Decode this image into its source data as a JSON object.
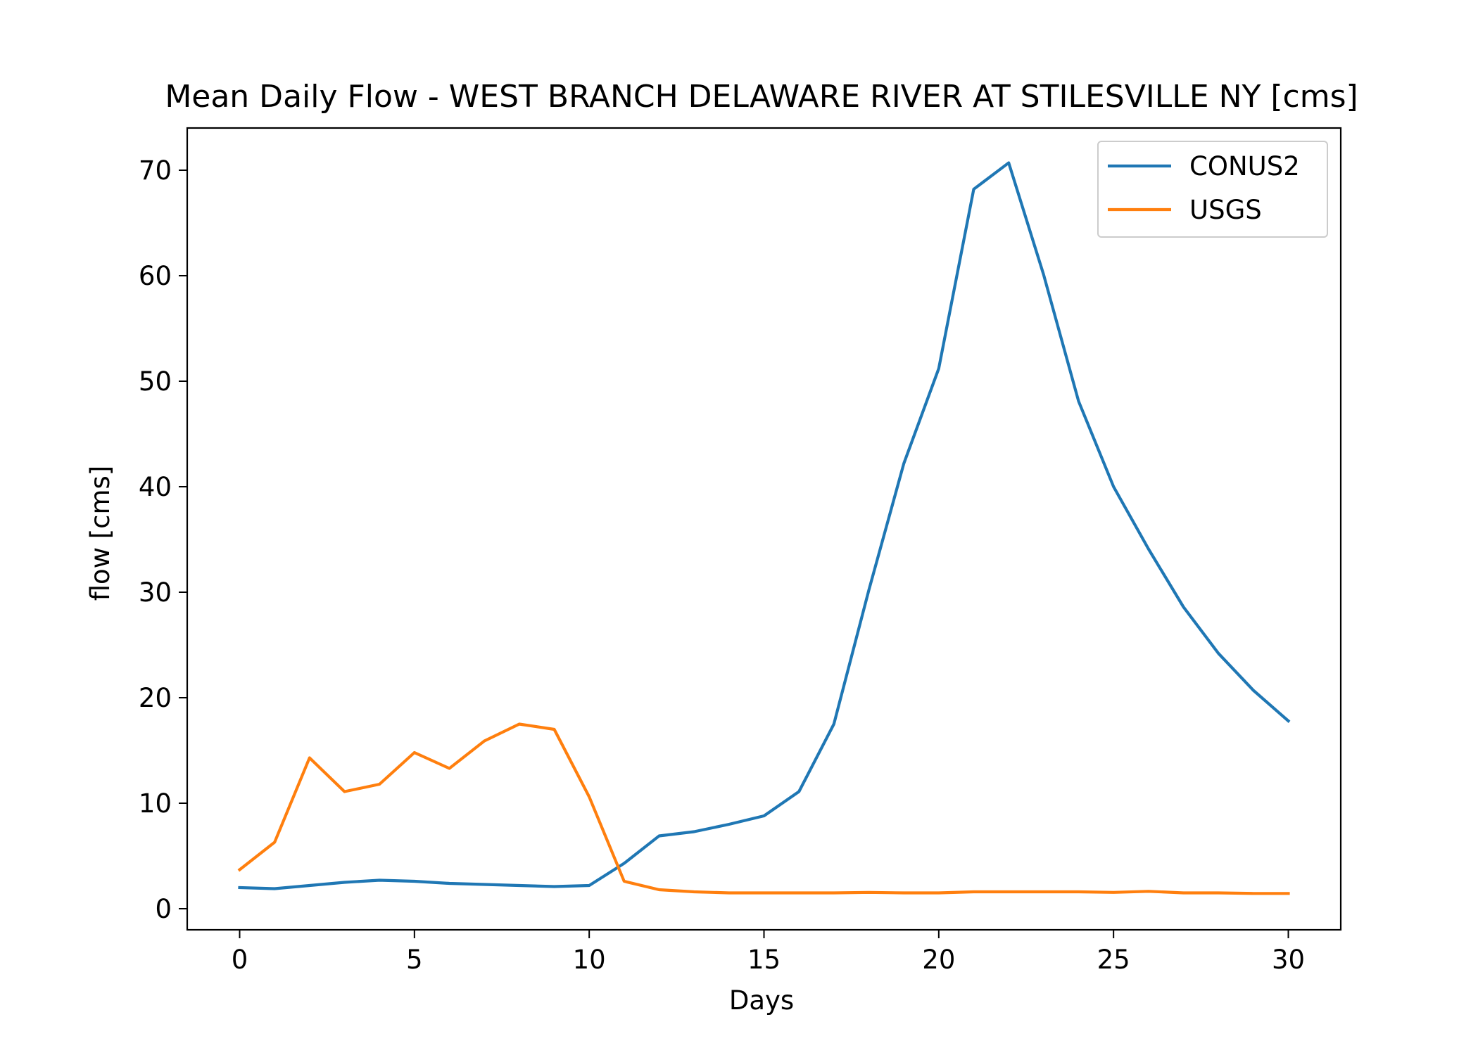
{
  "chart_data": {
    "type": "line",
    "title": "Mean Daily Flow - WEST BRANCH DELAWARE RIVER AT STILESVILLE NY [cms]",
    "xlabel": "Days",
    "ylabel": "flow [cms]",
    "xlim": [
      -1.5,
      31.5
    ],
    "ylim": [
      -2,
      74
    ],
    "xticks": [
      0,
      5,
      10,
      15,
      20,
      25,
      30
    ],
    "yticks": [
      0,
      10,
      20,
      30,
      40,
      50,
      60,
      70
    ],
    "grid": false,
    "legend_position": "top-right",
    "x": [
      0,
      1,
      2,
      3,
      4,
      5,
      6,
      7,
      8,
      9,
      10,
      11,
      12,
      13,
      14,
      15,
      16,
      17,
      18,
      19,
      20,
      21,
      22,
      23,
      24,
      25,
      26,
      27,
      28,
      29,
      30
    ],
    "series": [
      {
        "name": "CONUS2",
        "color": "#1f77b4",
        "values": [
          2.0,
          1.9,
          2.2,
          2.5,
          2.7,
          2.6,
          2.4,
          2.3,
          2.2,
          2.1,
          2.2,
          4.3,
          6.9,
          7.3,
          8.0,
          8.8,
          11.1,
          17.5,
          30.2,
          42.2,
          51.2,
          68.2,
          70.7,
          60.1,
          48.1,
          40.0,
          34.1,
          28.6,
          24.2,
          20.7,
          17.8
        ]
      },
      {
        "name": "USGS",
        "color": "#ff7f0e",
        "values": [
          3.7,
          6.3,
          14.3,
          11.1,
          11.8,
          14.8,
          13.3,
          15.9,
          17.5,
          17.0,
          10.6,
          2.6,
          1.8,
          1.6,
          1.5,
          1.5,
          1.5,
          1.5,
          1.55,
          1.5,
          1.5,
          1.6,
          1.6,
          1.6,
          1.6,
          1.55,
          1.65,
          1.5,
          1.5,
          1.45,
          1.45
        ]
      }
    ]
  }
}
